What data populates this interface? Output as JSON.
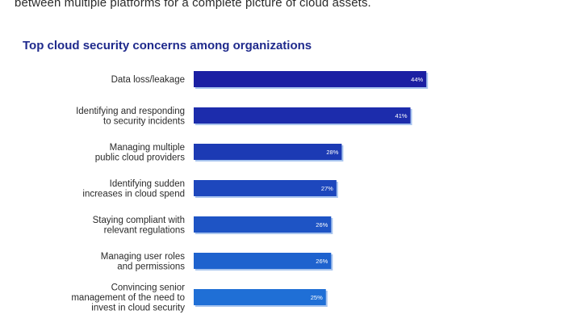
{
  "intro_text": "between multiple platforms for a complete picture of cloud assets.",
  "chart_data": {
    "type": "bar",
    "orientation": "horizontal",
    "title": "Top cloud security concerns among organizations",
    "categories": [
      [
        "Data loss/leakage"
      ],
      [
        "Identifying and responding",
        "to security incidents"
      ],
      [
        "Managing multiple",
        "public cloud providers"
      ],
      [
        "Identifying sudden",
        "increases in cloud spend"
      ],
      [
        "Staying compliant with",
        "relevant regulations"
      ],
      [
        "Managing user roles",
        "and permissions"
      ],
      [
        "Convincing senior",
        "management of the need to",
        "invest in cloud security"
      ]
    ],
    "values": [
      44,
      41,
      28,
      27,
      26,
      26,
      25
    ],
    "value_labels": [
      "44%",
      "41%",
      "28%",
      "27%",
      "26%",
      "26%",
      "25%"
    ],
    "unit": "%",
    "xlim": [
      0,
      56
    ],
    "colors": {
      "bar_top": "#1b1fa3",
      "bar_bottom": "#1f6fd6",
      "bar_shadow": "#a8c4ee",
      "title": "#1f2a8c"
    }
  }
}
